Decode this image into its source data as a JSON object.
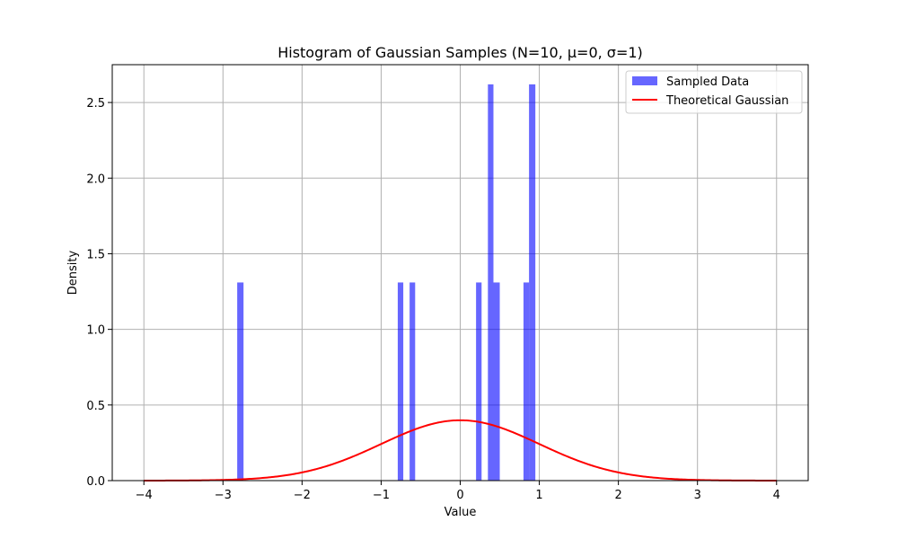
{
  "chart_data": {
    "type": "bar",
    "title": "Histogram of Gaussian Samples (N=10, μ=0, σ=1)",
    "xlabel": "Value",
    "ylabel": "Density",
    "xlim": [
      -4.4,
      4.4
    ],
    "ylim": [
      0,
      2.75
    ],
    "grid": true,
    "legend_position": "top-right",
    "x_ticks": [
      -4,
      -3,
      -2,
      -1,
      0,
      1,
      2,
      3,
      4
    ],
    "x_tick_labels": [
      "−4",
      "−3",
      "−2",
      "−1",
      "0",
      "1",
      "2",
      "3",
      "4"
    ],
    "y_ticks": [
      0.0,
      0.5,
      1.0,
      1.5,
      2.0,
      2.5
    ],
    "y_tick_labels": [
      "0.0",
      "0.5",
      "1.0",
      "1.5",
      "2.0",
      "2.5"
    ],
    "series": [
      {
        "name": "Sampled Data",
        "type": "histogram",
        "color": "#0000ff",
        "opacity": 0.6,
        "bins": [
          {
            "x0": -2.82,
            "x1": -2.74,
            "value": 1.31
          },
          {
            "x0": -0.79,
            "x1": -0.72,
            "value": 1.31
          },
          {
            "x0": -0.64,
            "x1": -0.57,
            "value": 1.31
          },
          {
            "x0": 0.2,
            "x1": 0.27,
            "value": 1.31
          },
          {
            "x0": 0.35,
            "x1": 0.42,
            "value": 2.62
          },
          {
            "x0": 0.42,
            "x1": 0.5,
            "value": 1.31
          },
          {
            "x0": 0.8,
            "x1": 0.87,
            "value": 1.31
          },
          {
            "x0": 0.87,
            "x1": 0.95,
            "value": 2.62
          }
        ]
      },
      {
        "name": "Theoretical Gaussian",
        "type": "line",
        "color": "#ff0000",
        "function": "normal_pdf",
        "mu": 0,
        "sigma": 1,
        "x_range": [
          -4,
          4
        ]
      }
    ]
  }
}
